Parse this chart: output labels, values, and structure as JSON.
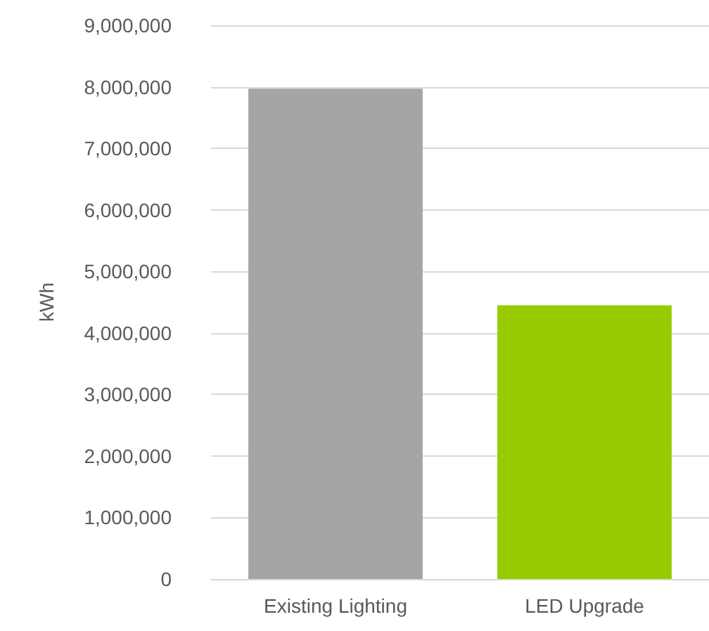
{
  "chart_data": {
    "type": "bar",
    "ylabel": "kWh",
    "categories": [
      "Existing Lighting",
      "LED Upgrade"
    ],
    "values": [
      7970000,
      4450000
    ],
    "colors": [
      "#a5a5a5",
      "#99cc00"
    ],
    "ylim": [
      0,
      9000000
    ],
    "yticks": [
      0,
      {
        "value": 1000000,
        "label": "1,000,000"
      },
      {
        "value": 2000000,
        "label": "2,000,000"
      },
      {
        "value": 3000000,
        "label": "3,000,000"
      },
      {
        "value": 4000000,
        "label": "4,000,000"
      },
      {
        "value": 5000000,
        "label": "5,000,000"
      },
      {
        "value": 6000000,
        "label": "6,000,000"
      },
      {
        "value": 7000000,
        "label": "7,000,000"
      },
      {
        "value": 8000000,
        "label": "8,000,000"
      },
      {
        "value": 9000000,
        "label": "9,000,000"
      }
    ],
    "grid": "y"
  }
}
